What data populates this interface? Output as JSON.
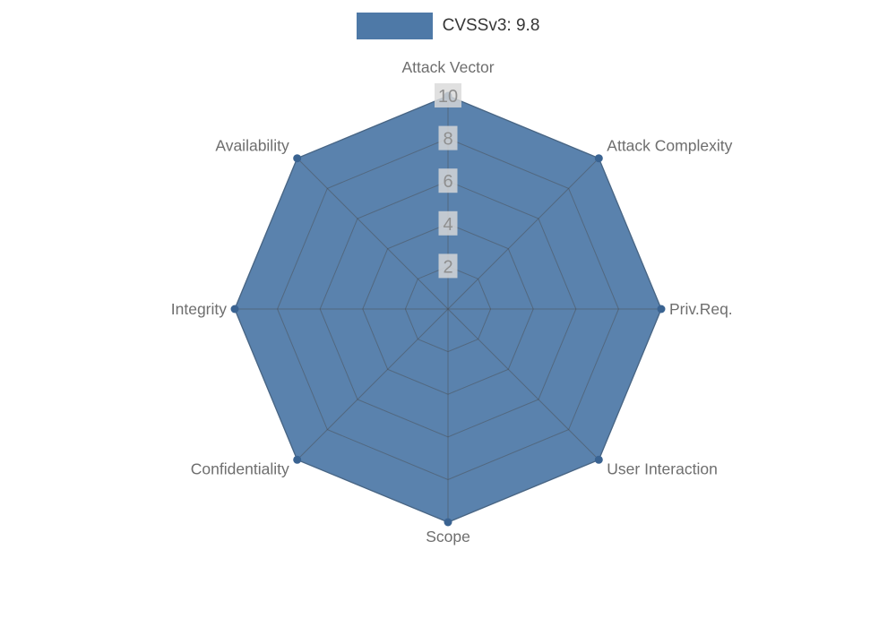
{
  "page": {
    "background": "#ffffff"
  },
  "legend": {
    "label": "CVSSv3: 9.8"
  },
  "chart_data": {
    "type": "radar",
    "title": "",
    "categories": [
      "Attack Vector",
      "Attack Complexity",
      "Priv.Req.",
      "User Interaction",
      "Scope",
      "Confidentiality",
      "Integrity",
      "Availability"
    ],
    "series": [
      {
        "name": "CVSSv3: 9.8",
        "values": [
          10,
          10,
          10,
          10,
          10,
          10,
          10,
          10
        ]
      }
    ],
    "ticks": [
      2,
      4,
      6,
      8,
      10
    ],
    "max": 10,
    "range": [
      0,
      10
    ],
    "grid": true,
    "legend_position": "top-center",
    "colors": {
      "series_fill": "#4e79a7",
      "series_point": "#3a6391",
      "grid_line": "#4a4a4a",
      "axis_label": "#6e6e6e",
      "tick_text": "#8f8f8f",
      "tick_box": "#d9d9d9",
      "legend_text": "#363636"
    }
  }
}
